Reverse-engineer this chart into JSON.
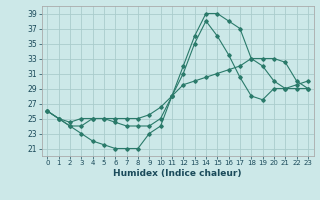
{
  "xlabel": "Humidex (Indice chaleur)",
  "ylabel": "",
  "bg_color": "#cce8e8",
  "line_color": "#2a7a6a",
  "grid_color": "#aacccc",
  "xlim": [
    -0.5,
    23.5
  ],
  "ylim": [
    20.0,
    40.0
  ],
  "yticks": [
    21,
    23,
    25,
    27,
    29,
    31,
    33,
    35,
    37,
    39
  ],
  "xticks": [
    0,
    1,
    2,
    3,
    4,
    5,
    6,
    7,
    8,
    9,
    10,
    11,
    12,
    13,
    14,
    15,
    16,
    17,
    18,
    19,
    20,
    21,
    22,
    23
  ],
  "series": [
    [
      26,
      25,
      24,
      23,
      22,
      21.5,
      21,
      21,
      21,
      23,
      24,
      28,
      32,
      36,
      39,
      39,
      38,
      37,
      33,
      32,
      30,
      29,
      29,
      29
    ],
    [
      26,
      25,
      24,
      24,
      25,
      25,
      24.5,
      24,
      24,
      24,
      25,
      28,
      31,
      35,
      38,
      36,
      33.5,
      30.5,
      28,
      27.5,
      29,
      29,
      29.5,
      30
    ],
    [
      26,
      25,
      24.5,
      25,
      25,
      25,
      25,
      25,
      25,
      25.5,
      26.5,
      28,
      29.5,
      30,
      30.5,
      31,
      31.5,
      32,
      33,
      33,
      33,
      32.5,
      30,
      29
    ]
  ]
}
